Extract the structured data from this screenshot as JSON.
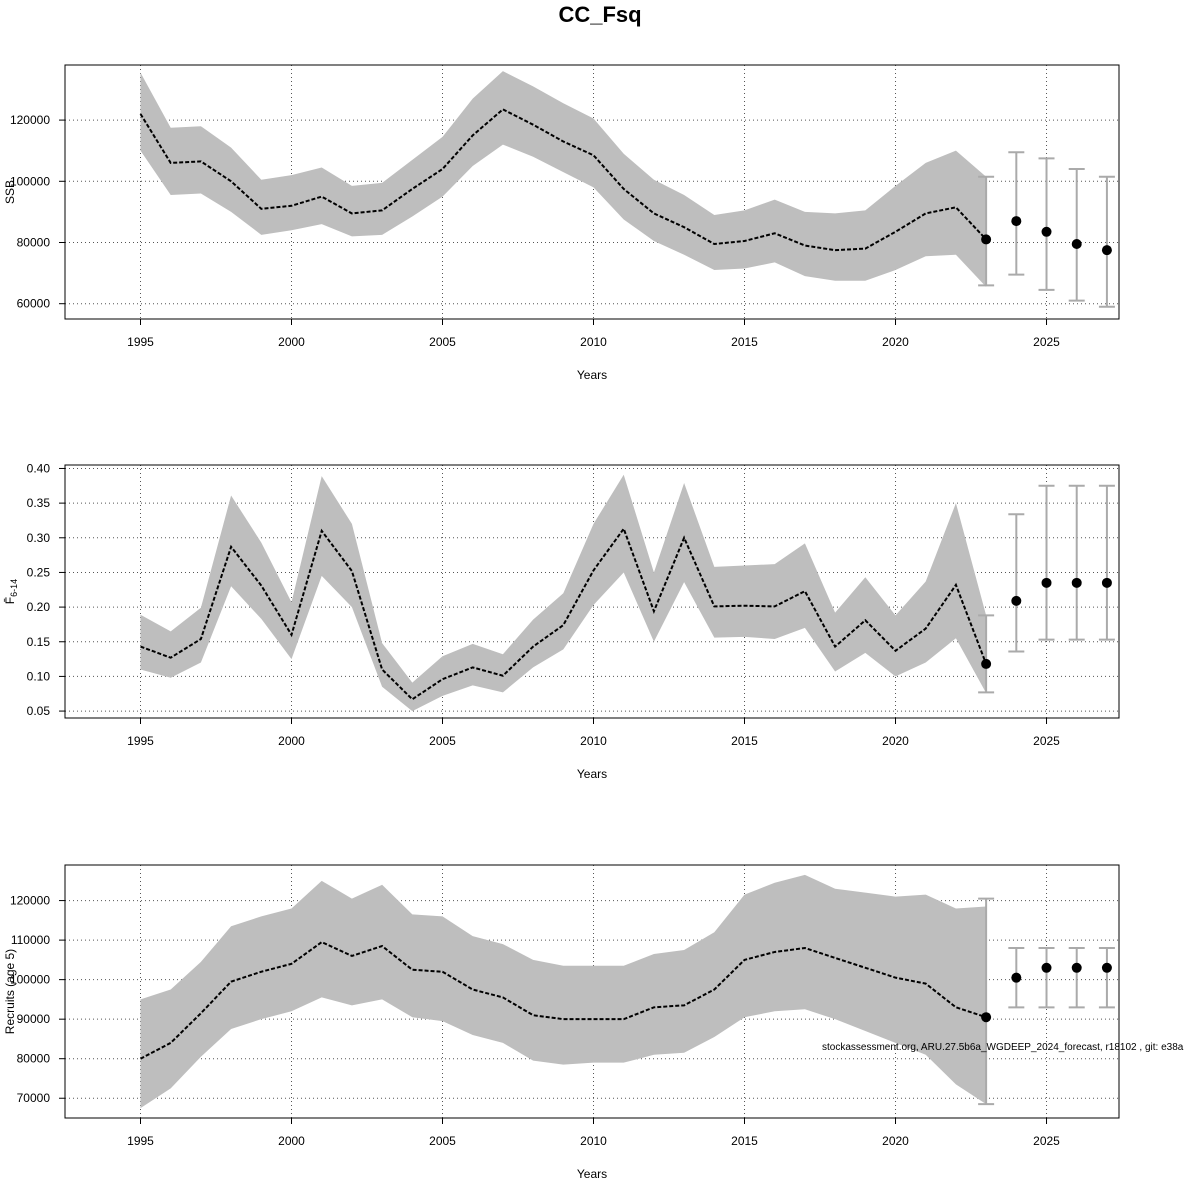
{
  "title": "CC_Fsq",
  "footer": "stockassessment.org, ARU.27.5b6a_WGDEEP_2024_forecast, r18102 , git: e38a",
  "chart_data": [
    {
      "type": "line",
      "id": "ssb",
      "xlabel": "Years",
      "ylabel": "SSB",
      "xlim": [
        1992.5,
        2027.4
      ],
      "ylim": [
        55000,
        138000
      ],
      "xticks": [
        1995,
        2000,
        2005,
        2010,
        2015,
        2020,
        2025
      ],
      "yticks": [
        60000,
        80000,
        100000,
        120000
      ],
      "ytick_labels": [
        "60000",
        "80000",
        "100000",
        "120000"
      ],
      "grid": true,
      "band_color": "#bebebe",
      "x": [
        1995,
        1996,
        1997,
        1998,
        1999,
        2000,
        2001,
        2002,
        2003,
        2004,
        2005,
        2006,
        2007,
        2008,
        2009,
        2010,
        2011,
        2012,
        2013,
        2014,
        2015,
        2016,
        2017,
        2018,
        2019,
        2020,
        2021,
        2022,
        2023
      ],
      "estimate": [
        122000,
        106000,
        106500,
        100000,
        91000,
        92000,
        95000,
        89500,
        90500,
        97500,
        104000,
        115000,
        123500,
        118500,
        113000,
        108500,
        97500,
        89500,
        85000,
        79500,
        80500,
        83000,
        79000,
        77500,
        78000,
        83500,
        89500,
        91500,
        81000
      ],
      "upper": [
        135500,
        117500,
        118000,
        111000,
        100500,
        102000,
        104500,
        98500,
        99500,
        107000,
        114500,
        127000,
        136000,
        131000,
        125500,
        120500,
        109000,
        100500,
        95500,
        89000,
        90500,
        94000,
        90000,
        89500,
        90500,
        98500,
        106000,
        110000,
        101500
      ],
      "lower": [
        110000,
        95500,
        96000,
        90000,
        82500,
        84000,
        86000,
        82000,
        82500,
        88500,
        95000,
        105000,
        112000,
        108000,
        103000,
        98000,
        87500,
        80500,
        76000,
        71000,
        71500,
        73500,
        69000,
        67500,
        67500,
        71000,
        75500,
        76000,
        65500
      ],
      "forecast": {
        "x": [
          2023,
          2024,
          2025,
          2026,
          2027
        ],
        "median": [
          81000,
          87000,
          83500,
          79500,
          77500
        ],
        "low": [
          66000,
          69500,
          64500,
          61000,
          59000
        ],
        "high": [
          101500,
          109500,
          107500,
          104000,
          101500
        ]
      }
    },
    {
      "type": "line",
      "id": "fbar",
      "xlabel": "Years",
      "ylabel": "F̄",
      "ylabel_sub": "6-14",
      "xlim": [
        1992.5,
        2027.4
      ],
      "ylim": [
        0.04,
        0.405
      ],
      "xticks": [
        1995,
        2000,
        2005,
        2010,
        2015,
        2020,
        2025
      ],
      "yticks": [
        0.05,
        0.1,
        0.15,
        0.2,
        0.25,
        0.3,
        0.35,
        0.4
      ],
      "ytick_labels": [
        "0.05",
        "0.10",
        "0.15",
        "0.20",
        "0.25",
        "0.30",
        "0.35",
        "0.40"
      ],
      "grid": true,
      "band_color": "#bebebe",
      "x": [
        1995,
        1996,
        1997,
        1998,
        1999,
        2000,
        2001,
        2002,
        2003,
        2004,
        2005,
        2006,
        2007,
        2008,
        2009,
        2010,
        2011,
        2012,
        2013,
        2014,
        2015,
        2016,
        2017,
        2018,
        2019,
        2020,
        2021,
        2022,
        2023
      ],
      "estimate": [
        0.143,
        0.127,
        0.154,
        0.287,
        0.231,
        0.16,
        0.31,
        0.252,
        0.11,
        0.067,
        0.096,
        0.113,
        0.101,
        0.143,
        0.174,
        0.253,
        0.313,
        0.194,
        0.3,
        0.201,
        0.202,
        0.201,
        0.223,
        0.143,
        0.181,
        0.137,
        0.169,
        0.232,
        0.118
      ],
      "upper": [
        0.189,
        0.165,
        0.199,
        0.361,
        0.293,
        0.207,
        0.389,
        0.32,
        0.148,
        0.091,
        0.129,
        0.147,
        0.132,
        0.182,
        0.22,
        0.32,
        0.391,
        0.25,
        0.379,
        0.258,
        0.26,
        0.262,
        0.292,
        0.192,
        0.243,
        0.188,
        0.237,
        0.35,
        0.188
      ],
      "lower": [
        0.11,
        0.098,
        0.12,
        0.23,
        0.183,
        0.125,
        0.245,
        0.2,
        0.085,
        0.05,
        0.072,
        0.087,
        0.077,
        0.113,
        0.139,
        0.203,
        0.25,
        0.15,
        0.236,
        0.156,
        0.157,
        0.154,
        0.17,
        0.107,
        0.134,
        0.1,
        0.12,
        0.155,
        0.076
      ],
      "forecast": {
        "x": [
          2023,
          2024,
          2025,
          2026,
          2027
        ],
        "median": [
          0.118,
          0.209,
          0.235,
          0.235,
          0.235
        ],
        "low": [
          0.077,
          0.136,
          0.153,
          0.153,
          0.153
        ],
        "high": [
          0.188,
          0.334,
          0.375,
          0.375,
          0.375
        ]
      }
    },
    {
      "type": "line",
      "id": "recruits",
      "xlabel": "Years",
      "ylabel": "Recruits (age 5)",
      "xlim": [
        1992.5,
        2027.4
      ],
      "ylim": [
        65000,
        129000
      ],
      "xticks": [
        1995,
        2000,
        2005,
        2010,
        2015,
        2020,
        2025
      ],
      "yticks": [
        70000,
        80000,
        90000,
        100000,
        110000,
        120000
      ],
      "ytick_labels": [
        "70000",
        "80000",
        "90000",
        "100000",
        "110000",
        "120000"
      ],
      "grid": true,
      "band_color": "#bebebe",
      "x": [
        1995,
        1996,
        1997,
        1998,
        1999,
        2000,
        2001,
        2002,
        2003,
        2004,
        2005,
        2006,
        2007,
        2008,
        2009,
        2010,
        2011,
        2012,
        2013,
        2014,
        2015,
        2016,
        2017,
        2018,
        2019,
        2020,
        2021,
        2022,
        2023
      ],
      "estimate": [
        80000,
        84000,
        91500,
        99500,
        102000,
        104000,
        109500,
        106000,
        108500,
        102500,
        102000,
        97500,
        95500,
        91000,
        90000,
        90000,
        90000,
        93000,
        93500,
        97500,
        105000,
        107000,
        108000,
        105500,
        103000,
        100500,
        99000,
        93000,
        90500
      ],
      "upper": [
        95000,
        97500,
        104500,
        113500,
        116000,
        118000,
        125000,
        120500,
        124000,
        116500,
        116000,
        111000,
        109000,
        105000,
        103500,
        103500,
        103500,
        106500,
        107500,
        112000,
        121500,
        124500,
        126500,
        123000,
        122000,
        121000,
        121500,
        118000,
        118500
      ],
      "lower": [
        67500,
        72500,
        80500,
        87500,
        90000,
        92000,
        95500,
        93500,
        95000,
        90500,
        89500,
        86000,
        84000,
        79500,
        78500,
        79000,
        79000,
        81000,
        81500,
        85500,
        90500,
        92000,
        92500,
        90000,
        87000,
        84000,
        81000,
        73500,
        68500
      ],
      "forecast": {
        "x": [
          2023,
          2024,
          2025,
          2026,
          2027
        ],
        "median": [
          90500,
          100500,
          103000,
          103000,
          103000
        ],
        "low": [
          68500,
          93000,
          93000,
          93000,
          93000
        ],
        "high": [
          120500,
          108000,
          108000,
          108000,
          108000
        ]
      }
    }
  ]
}
